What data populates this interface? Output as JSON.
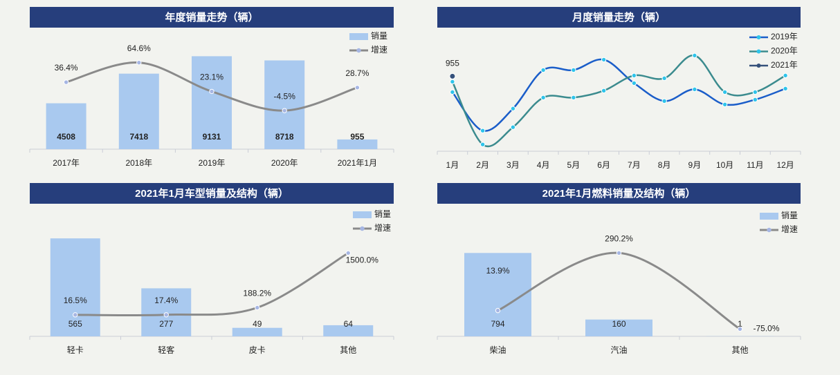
{
  "chart_data": [
    {
      "type": "combo",
      "title": "年度销量走势（辆）",
      "categories": [
        "2017年",
        "2018年",
        "2019年",
        "2020年",
        "2021年1月"
      ],
      "ylim": [
        0,
        11600
      ],
      "y2lim": [
        -60,
        110
      ],
      "series": [
        {
          "name": "销量",
          "type": "bar",
          "color": "#a9c9ef",
          "values": [
            4508,
            7418,
            9131,
            8718,
            955
          ]
        },
        {
          "name": "增速",
          "type": "line",
          "axis": "y2",
          "color": "#8a8a8a",
          "marker_color": "#a6b6e3",
          "values": [
            36.4,
            64.6,
            23.1,
            -4.5,
            28.7
          ],
          "value_labels": [
            "36.4%",
            "64.6%",
            "23.1%",
            "-4.5%",
            "28.7%"
          ]
        }
      ]
    },
    {
      "type": "line",
      "title": "月度销量走势（辆）",
      "categories": [
        "1月",
        "2月",
        "3月",
        "4月",
        "5月",
        "6月",
        "7月",
        "8月",
        "9月",
        "10月",
        "11月",
        "12月"
      ],
      "ylim": [
        0,
        1530
      ],
      "marker_color": "#2ec4ea",
      "series": [
        {
          "name": "2019年",
          "color": "#1a5dc9",
          "values": [
            753,
            262,
            543,
            1034,
            1034,
            1166,
            867,
            639,
            788,
            595,
            657,
            797
          ]
        },
        {
          "name": "2020年",
          "color": "#3b8b8e",
          "values": [
            885,
            86,
            306,
            683,
            683,
            771,
            964,
            929,
            1219,
            753,
            753,
            964
          ]
        },
        {
          "name": "2021年",
          "color": "#34507a",
          "data_labels": true,
          "values": [
            955,
            null,
            null,
            null,
            null,
            null,
            null,
            null,
            null,
            null,
            null,
            null
          ]
        }
      ]
    },
    {
      "type": "combo",
      "title": "2021年1月车型销量及结构（辆）",
      "categories": [
        "轻卡",
        "轻客",
        "皮卡",
        "其他"
      ],
      "ylim": [
        0,
        745
      ],
      "y2lim": [
        -500,
        2600
      ],
      "series": [
        {
          "name": "销量",
          "type": "bar",
          "color": "#a9c9ef",
          "values": [
            565,
            277,
            49,
            64
          ]
        },
        {
          "name": "增速",
          "type": "line",
          "axis": "y2",
          "color": "#8a8a8a",
          "marker_color": "#a6b6e3",
          "values": [
            16.5,
            17.4,
            188.2,
            1500.0
          ],
          "value_labels": [
            "16.5%",
            "17.4%",
            "188.2%",
            "1500.0%"
          ]
        }
      ]
    },
    {
      "type": "combo",
      "title": "2021年1月燃料销量及结构（辆）",
      "categories": [
        "柴油",
        "汽油",
        "其他"
      ],
      "ylim": [
        0,
        1230
      ],
      "y2lim": [
        -110,
        510
      ],
      "series": [
        {
          "name": "销量",
          "type": "bar",
          "color": "#a9c9ef",
          "values": [
            794,
            160,
            1
          ]
        },
        {
          "name": "增速",
          "type": "line",
          "axis": "y2",
          "color": "#8a8a8a",
          "marker_color": "#a6b6e3",
          "values": [
            13.9,
            290.2,
            -75.0
          ],
          "value_labels": [
            "13.9%",
            "290.2%",
            "-75.0%"
          ]
        }
      ]
    }
  ]
}
